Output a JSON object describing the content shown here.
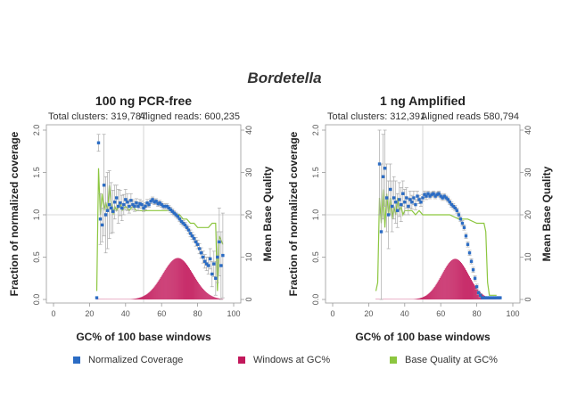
{
  "title": "Bordetella",
  "colors": {
    "coverage": "#2b6cc4",
    "windows": "#c2185b",
    "quality": "#8cc63f",
    "axis": "#999999",
    "refline": "#cccccc"
  },
  "legend": {
    "coverage": "Normalized Coverage",
    "windows": "Windows at GC%",
    "quality": "Base Quality at GC%"
  },
  "chart_data": [
    {
      "type": "scatter",
      "title": "100 ng PCR-free",
      "total_clusters_label": "Total clusters: 319,787",
      "aligned_reads_label": "Aligned reads: 600,235",
      "xlabel": "GC% of 100 base windows",
      "ylabel": "Fraction of normalized coverage",
      "y2label": "Mean Base Quality",
      "xlim": [
        0,
        100
      ],
      "ylim": [
        0,
        2
      ],
      "y2lim": [
        0,
        40
      ],
      "xticks": [
        "0",
        "20",
        "40",
        "60",
        "80",
        "100"
      ],
      "yticks": [
        "0.0",
        "0.5",
        "1.0",
        "1.5",
        "2.0"
      ],
      "y2ticks": [
        "0",
        "10",
        "20",
        "30",
        "40"
      ],
      "coverage": {
        "x": [
          24,
          25,
          26,
          27,
          28,
          29,
          30,
          31,
          32,
          33,
          34,
          35,
          36,
          37,
          38,
          39,
          40,
          41,
          42,
          43,
          44,
          45,
          46,
          47,
          48,
          49,
          50,
          51,
          52,
          53,
          54,
          55,
          56,
          57,
          58,
          59,
          60,
          61,
          62,
          63,
          64,
          65,
          66,
          67,
          68,
          69,
          70,
          71,
          72,
          73,
          74,
          75,
          76,
          77,
          78,
          79,
          80,
          81,
          82,
          83,
          84,
          85,
          86,
          87,
          88,
          89,
          90,
          91,
          92,
          93,
          94
        ],
        "y": [
          0.02,
          1.85,
          0.95,
          0.88,
          1.35,
          1.0,
          1.05,
          1.12,
          1.08,
          1.04,
          1.15,
          1.2,
          1.1,
          1.14,
          1.08,
          1.12,
          1.18,
          1.15,
          1.1,
          1.17,
          1.12,
          1.1,
          1.14,
          1.1,
          1.13,
          1.12,
          1.08,
          1.1,
          1.14,
          1.12,
          1.16,
          1.18,
          1.15,
          1.16,
          1.13,
          1.14,
          1.12,
          1.1,
          1.1,
          1.1,
          1.08,
          1.06,
          1.04,
          1.02,
          1.0,
          0.98,
          0.95,
          0.92,
          0.9,
          0.88,
          0.85,
          0.82,
          0.78,
          0.75,
          0.72,
          0.68,
          0.65,
          0.6,
          0.55,
          0.5,
          0.45,
          0.42,
          0.4,
          0.48,
          0.3,
          0.42,
          0.25,
          0.5,
          0.68,
          0.4,
          0.52
        ],
        "err": [
          0,
          0.1,
          0.3,
          0.2,
          0.6,
          0.45,
          0.45,
          0.4,
          0.3,
          0.25,
          0.2,
          0.15,
          0.2,
          0.15,
          0.15,
          0.12,
          0.12,
          0.1,
          0.08,
          0.08,
          0.06,
          0.06,
          0.05,
          0.05,
          0.05,
          0.04,
          0.04,
          0.04,
          0.04,
          0.03,
          0.03,
          0.03,
          0.03,
          0.03,
          0.03,
          0.03,
          0.03,
          0.03,
          0.03,
          0.03,
          0.03,
          0.03,
          0.03,
          0.03,
          0.03,
          0.03,
          0.03,
          0.03,
          0.03,
          0.03,
          0.03,
          0.04,
          0.04,
          0.04,
          0.04,
          0.05,
          0.05,
          0.06,
          0.06,
          0.07,
          0.08,
          0.08,
          0.1,
          0.12,
          0.15,
          0.15,
          0.2,
          0.3,
          0.4,
          0.4,
          0.5
        ]
      },
      "windows": {
        "x_start": 24,
        "x_end": 94,
        "center": 69,
        "peak_fraction": 0.49,
        "width": 8.5
      },
      "quality": {
        "x": [
          24,
          25,
          26,
          27,
          28,
          29,
          30,
          31,
          32,
          33,
          34,
          35,
          36,
          37,
          38,
          40,
          42,
          44,
          46,
          48,
          50,
          55,
          60,
          64,
          66,
          68,
          70,
          72,
          74,
          76,
          78,
          80,
          82,
          84,
          86,
          88,
          89,
          90,
          91,
          92,
          93,
          94
        ],
        "y": [
          2,
          31,
          20,
          25,
          21,
          23,
          21,
          27,
          23,
          20,
          22,
          21,
          22,
          23,
          21,
          22,
          21,
          22,
          21,
          21,
          21,
          21,
          21,
          21,
          21,
          20,
          20,
          19,
          19,
          18,
          18,
          17,
          17,
          17,
          17,
          18,
          18,
          18,
          2,
          15,
          14,
          13
        ]
      }
    },
    {
      "type": "scatter",
      "title": "1 ng Amplified",
      "total_clusters_label": "Total clusters: 312,391",
      "aligned_reads_label": "Aligned reads 580,794",
      "xlabel": "GC% of 100 base windows",
      "ylabel": "Fraction of normalized coverage",
      "y2label": "Mean Base Quality",
      "xlim": [
        0,
        100
      ],
      "ylim": [
        0,
        2
      ],
      "y2lim": [
        0,
        40
      ],
      "xticks": [
        "0",
        "20",
        "40",
        "60",
        "80",
        "100"
      ],
      "yticks": [
        "0.0",
        "0.5",
        "1.0",
        "1.5",
        "2.0"
      ],
      "y2ticks": [
        "0",
        "10",
        "20",
        "30",
        "40"
      ],
      "coverage": {
        "x": [
          26,
          27,
          28,
          29,
          30,
          31,
          32,
          33,
          34,
          35,
          36,
          37,
          38,
          39,
          40,
          41,
          42,
          43,
          44,
          45,
          46,
          47,
          48,
          49,
          50,
          51,
          52,
          53,
          54,
          55,
          56,
          57,
          58,
          59,
          60,
          61,
          62,
          63,
          64,
          65,
          66,
          67,
          68,
          69,
          70,
          71,
          72,
          73,
          74,
          75,
          76,
          77,
          78,
          79,
          80,
          81,
          82,
          83,
          84,
          85,
          86,
          87,
          88,
          89,
          90,
          91,
          92,
          93
        ],
        "y": [
          1.6,
          0.8,
          1.45,
          1.55,
          1.2,
          1.0,
          1.3,
          1.1,
          1.2,
          1.15,
          1.05,
          1.18,
          1.12,
          1.25,
          1.15,
          1.2,
          1.1,
          1.18,
          1.15,
          1.2,
          1.12,
          1.22,
          1.18,
          1.15,
          1.2,
          1.24,
          1.22,
          1.25,
          1.22,
          1.24,
          1.25,
          1.22,
          1.24,
          1.25,
          1.22,
          1.2,
          1.22,
          1.2,
          1.18,
          1.15,
          1.12,
          1.1,
          1.08,
          1.05,
          1.0,
          0.95,
          0.9,
          0.85,
          0.75,
          0.65,
          0.55,
          0.45,
          0.35,
          0.25,
          0.15,
          0.08,
          0.05,
          0.02,
          0.02,
          0.02,
          0.02,
          0.02,
          0.02,
          0.02,
          0.02,
          0.02,
          0.02,
          0.02
        ],
        "err": [
          0.6,
          0.8,
          0.5,
          0.45,
          0.4,
          0.4,
          0.3,
          0.3,
          0.25,
          0.25,
          0.2,
          0.2,
          0.2,
          0.15,
          0.15,
          0.12,
          0.1,
          0.1,
          0.08,
          0.08,
          0.06,
          0.06,
          0.05,
          0.05,
          0.04,
          0.04,
          0.04,
          0.03,
          0.03,
          0.03,
          0.03,
          0.03,
          0.03,
          0.03,
          0.03,
          0.03,
          0.03,
          0.03,
          0.03,
          0.03,
          0.03,
          0.03,
          0.03,
          0.03,
          0.03,
          0.03,
          0.03,
          0.03,
          0.03,
          0.03,
          0.03,
          0.03,
          0.03,
          0.03,
          0.03,
          0.02,
          0.02,
          0,
          0,
          0,
          0,
          0,
          0,
          0,
          0,
          0,
          0,
          0
        ]
      },
      "windows": {
        "x_start": 24,
        "x_end": 93,
        "center": 68,
        "peak_fraction": 0.48,
        "width": 7.5
      },
      "quality": {
        "x": [
          24,
          25,
          26,
          27,
          28,
          29,
          30,
          31,
          32,
          33,
          34,
          35,
          36,
          37,
          38,
          39,
          40,
          42,
          44,
          46,
          48,
          50,
          52,
          55,
          60,
          65,
          70,
          75,
          80,
          84,
          85,
          86,
          87,
          88,
          89,
          90,
          91
        ],
        "y": [
          2,
          4,
          24,
          18,
          26,
          17,
          25,
          20,
          24,
          19,
          22,
          20,
          24,
          21,
          22,
          20,
          21,
          21,
          21,
          20,
          21,
          20,
          20,
          20,
          20,
          20,
          19,
          19,
          18,
          18,
          16,
          4,
          1,
          1,
          1,
          1,
          1
        ]
      }
    }
  ]
}
